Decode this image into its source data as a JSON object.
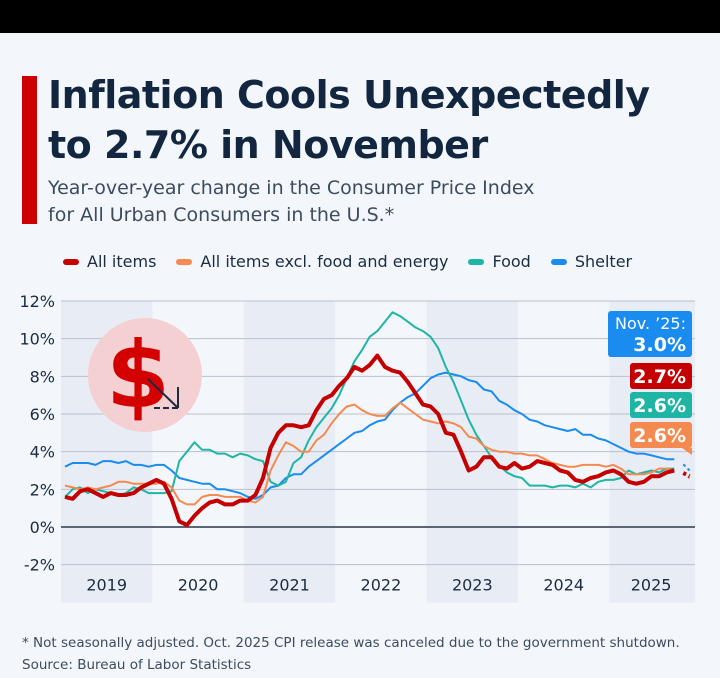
{
  "header": {
    "title_line1": "Inflation Cools Unexpectedly",
    "title_line2": "to 2.7% in November",
    "subtitle_line1": "Year-over-year change in the Consumer Price Index",
    "subtitle_line2": "for All Urban Consumers in the U.S.*"
  },
  "footer": {
    "note": "* Not seasonally adjusted. Oct. 2025 CPI release was canceled due to the government shutdown.",
    "source": "Source: Bureau of Labor Statistics"
  },
  "icon": {
    "name": "dollar-down-icon",
    "glyph": "$"
  },
  "chart_data": {
    "type": "line",
    "title": "Inflation Cools Unexpectedly to 2.7% in November",
    "xlabel": "",
    "ylabel": "",
    "ylim": [
      -2,
      12
    ],
    "yticks": [
      "12%",
      "10%",
      "8%",
      "6%",
      "4%",
      "2%",
      "0%",
      "-2%"
    ],
    "ytick_values": [
      12,
      10,
      8,
      6,
      4,
      2,
      0,
      -2
    ],
    "year_labels": [
      "2019",
      "2020",
      "2021",
      "2022",
      "2023",
      "2024",
      "2025"
    ],
    "x_start": "2019-01",
    "x_note": "Monthly, Jan 2019 - Nov 2025; Oct 2025 missing",
    "grid": true,
    "legend_position": "top",
    "end_labels": {
      "header": "Nov. ’25:",
      "values": [
        "3.0%",
        "2.7%",
        "2.6%",
        "2.6%"
      ],
      "colors": [
        "#1a8cf0",
        "#c40000",
        "#1fb5a5",
        "#f58a50"
      ]
    },
    "series": [
      {
        "name": "All items",
        "color": "#c40000",
        "values": [
          1.6,
          1.5,
          1.9,
          2.0,
          1.8,
          1.6,
          1.8,
          1.7,
          1.7,
          1.8,
          2.1,
          2.3,
          2.5,
          2.3,
          1.5,
          0.3,
          0.1,
          0.6,
          1.0,
          1.3,
          1.4,
          1.2,
          1.2,
          1.4,
          1.4,
          1.7,
          2.6,
          4.2,
          5.0,
          5.4,
          5.4,
          5.3,
          5.4,
          6.2,
          6.8,
          7.0,
          7.5,
          7.9,
          8.5,
          8.3,
          8.6,
          9.1,
          8.5,
          8.3,
          8.2,
          7.7,
          7.1,
          6.5,
          6.4,
          6.0,
          5.0,
          4.9,
          4.0,
          3.0,
          3.2,
          3.7,
          3.7,
          3.2,
          3.1,
          3.4,
          3.1,
          3.2,
          3.5,
          3.4,
          3.3,
          3.0,
          2.9,
          2.5,
          2.4,
          2.6,
          2.7,
          2.9,
          3.0,
          2.8,
          2.4,
          2.3,
          2.4,
          2.7,
          2.7,
          2.9,
          3.0,
          null,
          2.7
        ]
      },
      {
        "name": "All items excl. food and energy",
        "color": "#f58a50",
        "values": [
          2.2,
          2.1,
          2.0,
          2.1,
          2.0,
          2.1,
          2.2,
          2.4,
          2.4,
          2.3,
          2.3,
          2.3,
          2.3,
          2.4,
          2.1,
          1.4,
          1.2,
          1.2,
          1.6,
          1.7,
          1.7,
          1.6,
          1.6,
          1.6,
          1.4,
          1.3,
          1.6,
          3.0,
          3.8,
          4.5,
          4.3,
          4.0,
          4.0,
          4.6,
          4.9,
          5.5,
          6.0,
          6.4,
          6.5,
          6.2,
          6.0,
          5.9,
          5.9,
          6.3,
          6.6,
          6.3,
          6.0,
          5.7,
          5.6,
          5.5,
          5.6,
          5.5,
          5.3,
          4.8,
          4.7,
          4.3,
          4.1,
          4.0,
          4.0,
          3.9,
          3.9,
          3.8,
          3.8,
          3.6,
          3.4,
          3.3,
          3.2,
          3.2,
          3.3,
          3.3,
          3.3,
          3.2,
          3.3,
          3.1,
          2.8,
          2.8,
          2.8,
          2.9,
          3.1,
          3.1,
          3.0,
          null,
          2.6
        ]
      },
      {
        "name": "Food",
        "color": "#1fb5a5",
        "values": [
          1.6,
          2.0,
          2.1,
          1.8,
          2.0,
          1.9,
          1.8,
          1.7,
          1.8,
          2.1,
          2.0,
          1.8,
          1.8,
          1.8,
          1.9,
          3.5,
          4.0,
          4.5,
          4.1,
          4.1,
          3.9,
          3.9,
          3.7,
          3.9,
          3.8,
          3.6,
          3.5,
          2.4,
          2.2,
          2.4,
          3.4,
          3.7,
          4.6,
          5.3,
          5.8,
          6.3,
          7.0,
          7.9,
          8.8,
          9.4,
          10.1,
          10.4,
          10.9,
          11.4,
          11.2,
          10.9,
          10.6,
          10.4,
          10.1,
          9.5,
          8.5,
          7.7,
          6.7,
          5.7,
          4.9,
          4.3,
          3.7,
          3.3,
          2.9,
          2.7,
          2.6,
          2.2,
          2.2,
          2.2,
          2.1,
          2.2,
          2.2,
          2.1,
          2.3,
          2.1,
          2.4,
          2.5,
          2.5,
          2.6,
          3.0,
          2.8,
          2.9,
          3.0,
          2.9,
          3.1,
          3.1,
          null,
          2.6
        ]
      },
      {
        "name": "Shelter",
        "color": "#1a8cf0",
        "values": [
          3.2,
          3.4,
          3.4,
          3.4,
          3.3,
          3.5,
          3.5,
          3.4,
          3.5,
          3.3,
          3.3,
          3.2,
          3.3,
          3.3,
          3.0,
          2.6,
          2.5,
          2.4,
          2.3,
          2.3,
          2.0,
          2.0,
          1.9,
          1.8,
          1.6,
          1.5,
          1.7,
          2.1,
          2.2,
          2.6,
          2.8,
          2.8,
          3.2,
          3.5,
          3.8,
          4.1,
          4.4,
          4.7,
          5.0,
          5.1,
          5.4,
          5.6,
          5.7,
          6.2,
          6.6,
          6.9,
          7.1,
          7.5,
          7.9,
          8.1,
          8.2,
          8.1,
          8.0,
          7.8,
          7.7,
          7.3,
          7.2,
          6.7,
          6.5,
          6.2,
          6.0,
          5.7,
          5.6,
          5.4,
          5.3,
          5.2,
          5.1,
          5.2,
          4.9,
          4.9,
          4.7,
          4.6,
          4.4,
          4.2,
          4.0,
          3.9,
          3.9,
          3.8,
          3.7,
          3.6,
          3.6,
          null,
          3.0
        ]
      }
    ]
  }
}
